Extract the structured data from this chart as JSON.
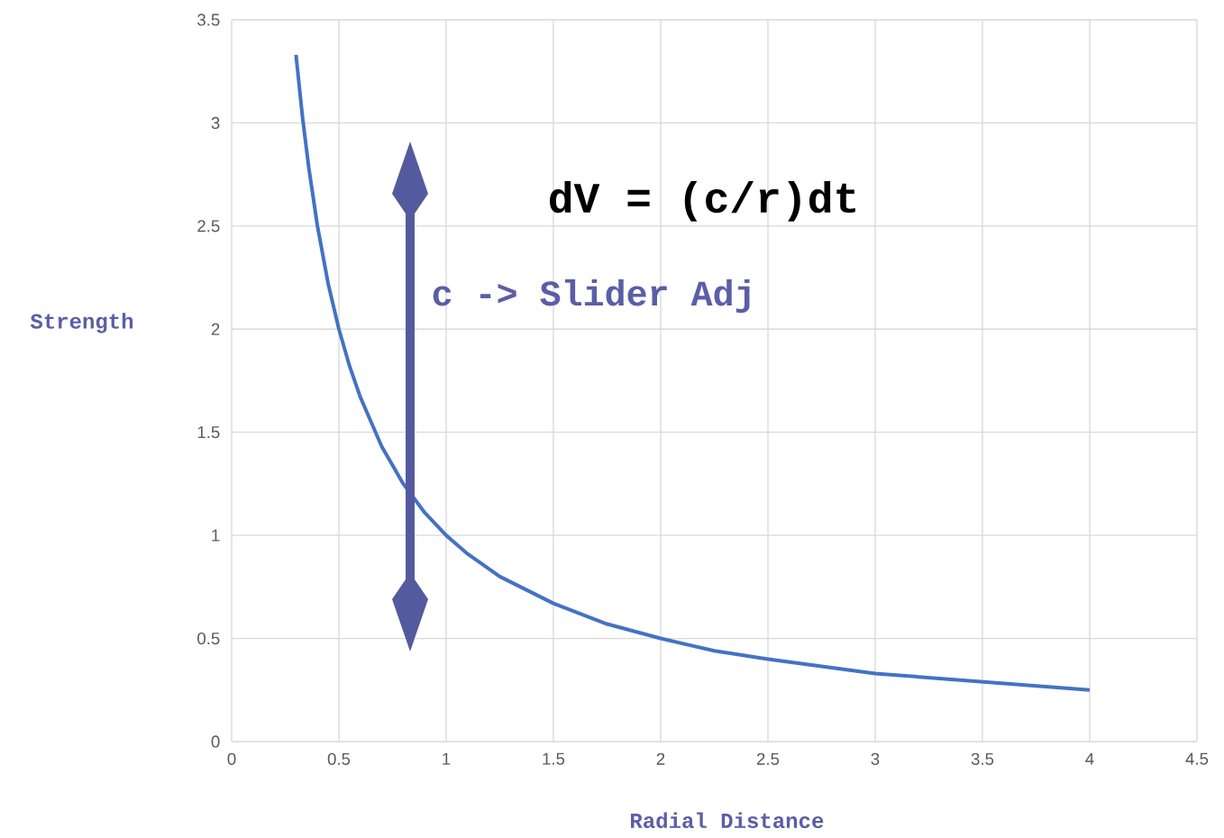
{
  "chart_data": {
    "type": "line",
    "xlabel": "Radial Distance",
    "ylabel": "Strength",
    "annotations": [
      "dV = (c/r)dt",
      "c -> Slider Adj"
    ],
    "x": [
      0.3,
      0.33,
      0.36,
      0.4,
      0.45,
      0.5,
      0.55,
      0.6,
      0.7,
      0.8,
      0.9,
      1,
      1.1,
      1.25,
      1.5,
      1.75,
      2,
      2.25,
      2.5,
      3,
      3.5,
      4
    ],
    "series": [
      {
        "color": "#4472c4",
        "values": [
          3.33,
          3.03,
          2.78,
          2.5,
          2.22,
          2.0,
          1.82,
          1.67,
          1.43,
          1.25,
          1.11,
          1.0,
          0.91,
          0.8,
          0.67,
          0.57,
          0.5,
          0.44,
          0.4,
          0.33,
          0.29,
          0.25
        ]
      }
    ],
    "xlim": [
      0,
      4.5
    ],
    "ylim": [
      0,
      3.5
    ],
    "xticks": [
      0,
      0.5,
      1,
      1.5,
      2,
      2.5,
      3,
      3.5,
      4,
      4.5
    ],
    "yticks": [
      0,
      0.5,
      1,
      1.5,
      2,
      2.5,
      3,
      3.5
    ],
    "grid": true,
    "marker": "none",
    "line_style": "solid"
  }
}
